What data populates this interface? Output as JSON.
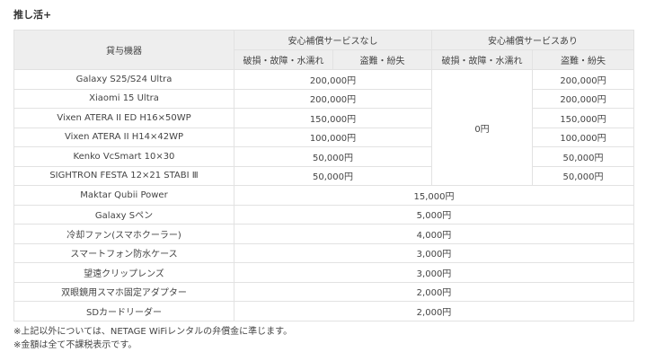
{
  "title": "推し活+",
  "header": {
    "device": "貸与機器",
    "without": "安心補償サービスなし",
    "with": "安心補償サービスあり",
    "damage": "破損・故障・水濡れ",
    "theft": "盗難・紛失"
  },
  "grouped_rows": [
    {
      "device": "Galaxy S25/S24 Ultra",
      "without": "200,000円",
      "with_theft": "200,000円"
    },
    {
      "device": "Xiaomi 15 Ultra",
      "without": "200,000円",
      "with_theft": "200,000円"
    },
    {
      "device": "Vixen ATERA II ED H16×50WP",
      "without": "150,000円",
      "with_theft": "150,000円"
    },
    {
      "device": "Vixen ATERA II H14×42WP",
      "without": "100,000円",
      "with_theft": "100,000円"
    },
    {
      "device": "Kenko VcSmart 10×30",
      "without": "50,000円",
      "with_theft": "50,000円"
    },
    {
      "device": "SIGHTRON FESTA 12×21 STABI Ⅲ",
      "without": "50,000円",
      "with_theft": "50,000円"
    }
  ],
  "with_damage": "0円",
  "flat_rows": [
    {
      "device": "Maktar Qubii Power",
      "price": "15,000円"
    },
    {
      "device": "Galaxy Sペン",
      "price": "5,000円"
    },
    {
      "device": "冷却ファン(スマホクーラー)",
      "price": "4,000円"
    },
    {
      "device": "スマートフォン防水ケース",
      "price": "3,000円"
    },
    {
      "device": "望遠クリップレンズ",
      "price": "3,000円"
    },
    {
      "device": "双眼鏡用スマホ固定アダプター",
      "price": "2,000円"
    },
    {
      "device": "SDカードリーダー",
      "price": "2,000円"
    }
  ],
  "notes": [
    "※上記以外については、NETAGE WiFiレンタルの弁償金に準じます。",
    "※金額は全て不課税表示です。"
  ]
}
